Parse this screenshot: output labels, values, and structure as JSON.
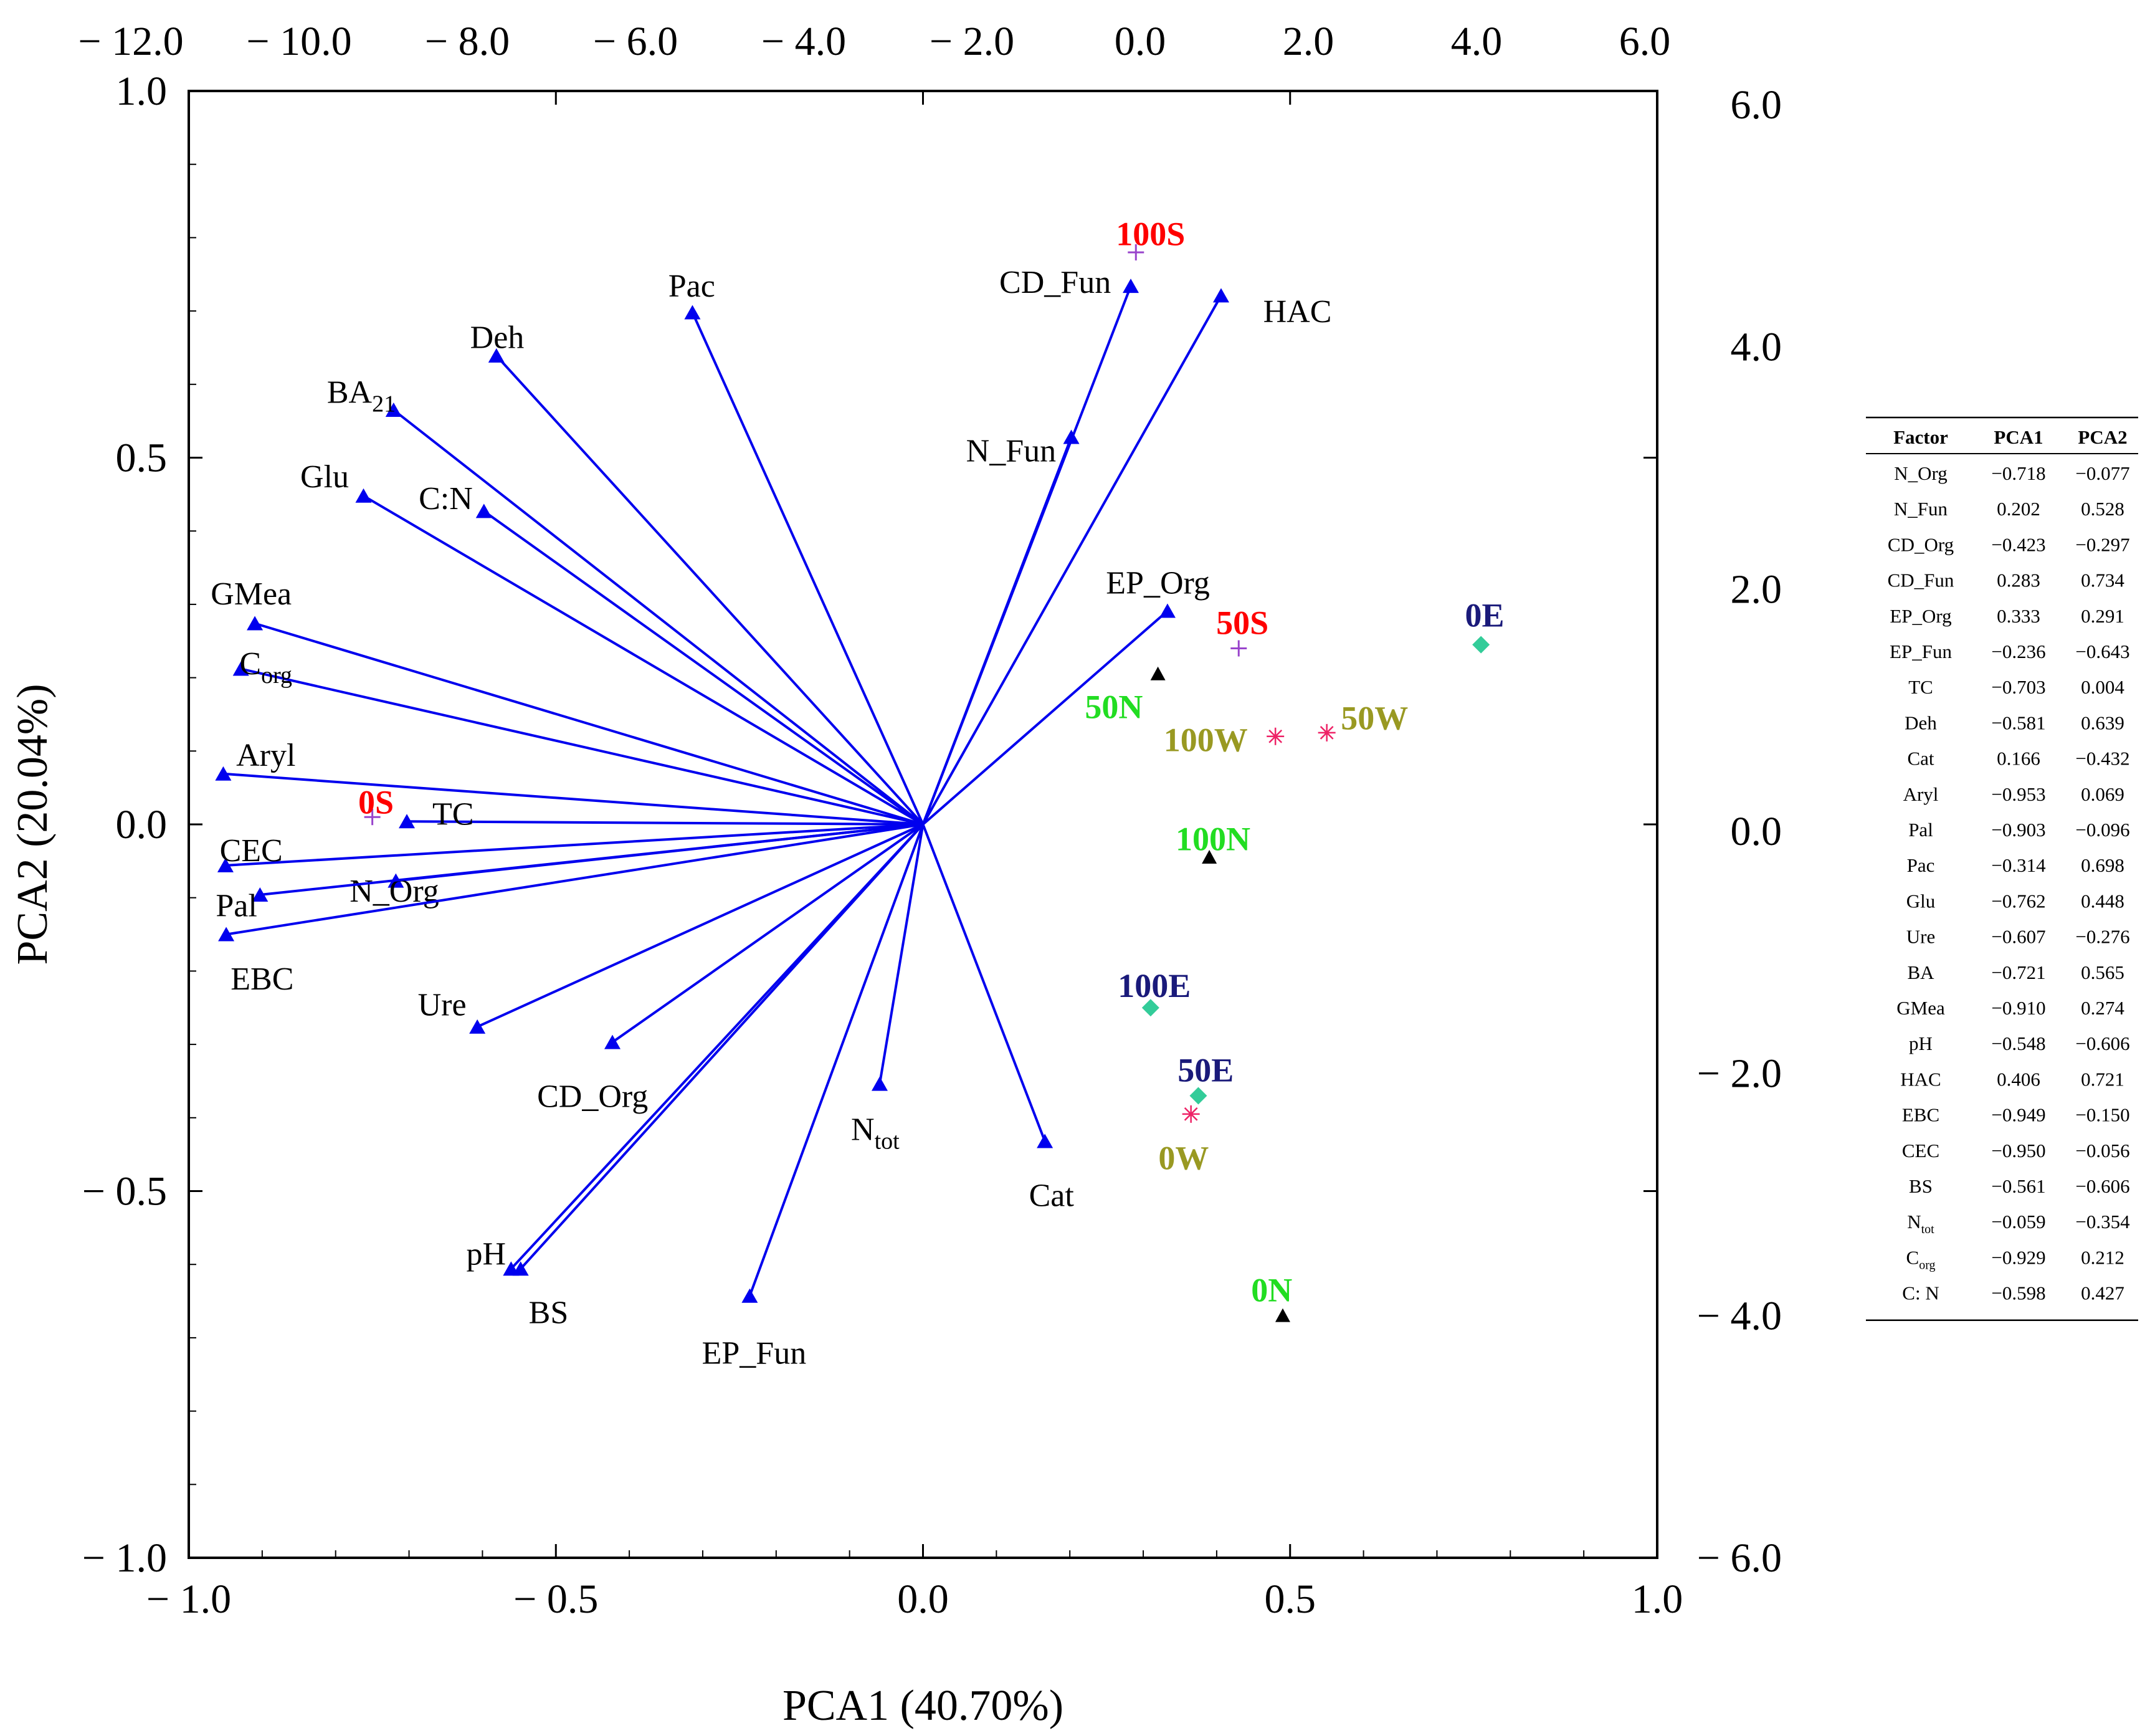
{
  "chart_data": {
    "type": "scatter",
    "subtype": "pca-biplot",
    "xlabel": "PCA1 (40.70%)",
    "ylabel": "PCA2 (20.04%)",
    "xlim": [
      -1.0,
      1.0
    ],
    "ylim": [
      -1.0,
      1.0
    ],
    "top_xlim": [
      -12.0,
      6.0
    ],
    "right_ylim": [
      -6.0,
      6.0
    ],
    "x_ticks": [
      "− 1.0",
      "− 0.5",
      "0.0",
      "0.5",
      "1.0"
    ],
    "y_ticks": [
      "1.0",
      "0.5",
      "0.0",
      "− 0.5",
      "− 1.0"
    ],
    "top_ticks": [
      "− 12.0",
      "− 10.0",
      "− 8.0",
      "− 6.0",
      "− 4.0",
      "− 2.0",
      "0.0",
      "2.0",
      "4.0",
      "6.0"
    ],
    "right_ticks": [
      "6.0",
      "4.0",
      "2.0",
      "0.0",
      "− 2.0",
      "− 4.0",
      "− 6.0"
    ],
    "vectors": [
      {
        "name": "N_Org",
        "label": "N_Org",
        "x": -0.718,
        "y": -0.077
      },
      {
        "name": "N_Fun",
        "label": "N_Fun",
        "x": 0.202,
        "y": 0.528
      },
      {
        "name": "CD_Org",
        "label": "CD_Org",
        "x": -0.423,
        "y": -0.297
      },
      {
        "name": "CD_Fun",
        "label": "CD_Fun",
        "x": 0.283,
        "y": 0.734
      },
      {
        "name": "EP_Org",
        "label": "EP_Org",
        "x": 0.333,
        "y": 0.291
      },
      {
        "name": "EP_Fun",
        "label": "EP_Fun",
        "x": -0.236,
        "y": -0.643
      },
      {
        "name": "TC",
        "label": "TC",
        "x": -0.703,
        "y": 0.004
      },
      {
        "name": "Deh",
        "label": "Deh",
        "x": -0.581,
        "y": 0.639
      },
      {
        "name": "Cat",
        "label": "Cat",
        "x": 0.166,
        "y": -0.432
      },
      {
        "name": "Aryl",
        "label": "Aryl",
        "x": -0.953,
        "y": 0.069
      },
      {
        "name": "Pal",
        "label": "Pal",
        "x": -0.903,
        "y": -0.096
      },
      {
        "name": "Pac",
        "label": "Pac",
        "x": -0.314,
        "y": 0.698
      },
      {
        "name": "Glu",
        "label": "Glu",
        "x": -0.762,
        "y": 0.448
      },
      {
        "name": "Ure",
        "label": "Ure",
        "x": -0.607,
        "y": -0.276
      },
      {
        "name": "BA",
        "label": "BA",
        "sub": "21",
        "x": -0.721,
        "y": 0.565
      },
      {
        "name": "GMea",
        "label": "GMea",
        "x": -0.91,
        "y": 0.274
      },
      {
        "name": "pH",
        "label": "pH",
        "x": -0.548,
        "y": -0.606
      },
      {
        "name": "HAC",
        "label": "HAC",
        "x": 0.406,
        "y": 0.721
      },
      {
        "name": "EBC",
        "label": "EBC",
        "x": -0.949,
        "y": -0.15
      },
      {
        "name": "CEC",
        "label": "CEC",
        "x": -0.95,
        "y": -0.056
      },
      {
        "name": "BS",
        "label": "BS",
        "x": -0.561,
        "y": -0.606
      },
      {
        "name": "Ntot",
        "label": "N",
        "sub": "tot",
        "x": -0.059,
        "y": -0.354
      },
      {
        "name": "Corg",
        "label": "C",
        "sub": "org",
        "x": -0.929,
        "y": 0.212
      },
      {
        "name": "CN",
        "label": "C:N",
        "x": -0.598,
        "y": 0.427
      }
    ],
    "samples": [
      {
        "label": "100S",
        "x": 0.29,
        "y": 0.78,
        "marker": "plus",
        "group": "S"
      },
      {
        "label": "50S",
        "x": 0.43,
        "y": 0.24,
        "marker": "plus",
        "group": "S"
      },
      {
        "label": "0S",
        "x": -0.75,
        "y": 0.01,
        "marker": "plus",
        "group": "S"
      },
      {
        "label": "50N",
        "x": 0.32,
        "y": 0.205,
        "marker": "triangle",
        "group": "N"
      },
      {
        "label": "100N",
        "x": 0.39,
        "y": -0.045,
        "marker": "triangle",
        "group": "N"
      },
      {
        "label": "0N",
        "x": 0.49,
        "y": -0.67,
        "marker": "triangle",
        "group": "N"
      },
      {
        "label": "100W",
        "x": 0.48,
        "y": 0.12,
        "marker": "star",
        "group": "W"
      },
      {
        "label": "50W",
        "x": 0.55,
        "y": 0.125,
        "marker": "star",
        "group": "W"
      },
      {
        "label": "0W",
        "x": 0.365,
        "y": -0.395,
        "marker": "star",
        "group": "W"
      },
      {
        "label": "0E",
        "x": 0.76,
        "y": 0.245,
        "marker": "diamond",
        "group": "E"
      },
      {
        "label": "100E",
        "x": 0.31,
        "y": -0.25,
        "marker": "diamond",
        "group": "E"
      },
      {
        "label": "50E",
        "x": 0.375,
        "y": -0.37,
        "marker": "diamond",
        "group": "E"
      }
    ],
    "group_colors": {
      "S": "#ff0000",
      "N": "#22dd22",
      "W": "#999922",
      "E": "#1a1a7a"
    },
    "vector_color": "#0000ee",
    "table": {
      "headers": [
        "Factor",
        "PCA1",
        "PCA2"
      ],
      "rows": [
        {
          "factor": "N_Org",
          "pca1": "−0.718",
          "pca2": "−0.077"
        },
        {
          "factor": "N_Fun",
          "pca1": "0.202",
          "pca2": "0.528"
        },
        {
          "factor": "CD_Org",
          "pca1": "−0.423",
          "pca2": "−0.297"
        },
        {
          "factor": "CD_Fun",
          "pca1": "0.283",
          "pca2": "0.734"
        },
        {
          "factor": "EP_Org",
          "pca1": "0.333",
          "pca2": "0.291"
        },
        {
          "factor": "EP_Fun",
          "pca1": "−0.236",
          "pca2": "−0.643"
        },
        {
          "factor": "TC",
          "pca1": "−0.703",
          "pca2": "0.004"
        },
        {
          "factor": "Deh",
          "pca1": "−0.581",
          "pca2": "0.639"
        },
        {
          "factor": "Cat",
          "pca1": "0.166",
          "pca2": "−0.432"
        },
        {
          "factor": "Aryl",
          "pca1": "−0.953",
          "pca2": "0.069"
        },
        {
          "factor": "Pal",
          "pca1": "−0.903",
          "pca2": "−0.096"
        },
        {
          "factor": "Pac",
          "pca1": "−0.314",
          "pca2": "0.698"
        },
        {
          "factor": "Glu",
          "pca1": "−0.762",
          "pca2": "0.448"
        },
        {
          "factor": "Ure",
          "pca1": "−0.607",
          "pca2": "−0.276"
        },
        {
          "factor": "BA",
          "pca1": "−0.721",
          "pca2": "0.565"
        },
        {
          "factor": "GMea",
          "pca1": "−0.910",
          "pca2": "0.274"
        },
        {
          "factor": "pH",
          "pca1": "−0.548",
          "pca2": "−0.606"
        },
        {
          "factor": "HAC",
          "pca1": "0.406",
          "pca2": "0.721"
        },
        {
          "factor": "EBC",
          "pca1": "−0.949",
          "pca2": "−0.150"
        },
        {
          "factor": "CEC",
          "pca1": "−0.950",
          "pca2": "−0.056"
        },
        {
          "factor": "BS",
          "pca1": "−0.561",
          "pca2": "−0.606"
        },
        {
          "factor": "N",
          "factor_sub": "tot",
          "pca1": "−0.059",
          "pca2": "−0.354"
        },
        {
          "factor": "C",
          "factor_sub": "org",
          "pca1": "−0.929",
          "pca2": "0.212"
        },
        {
          "factor": "C: N",
          "pca1": "−0.598",
          "pca2": "0.427"
        }
      ]
    }
  }
}
